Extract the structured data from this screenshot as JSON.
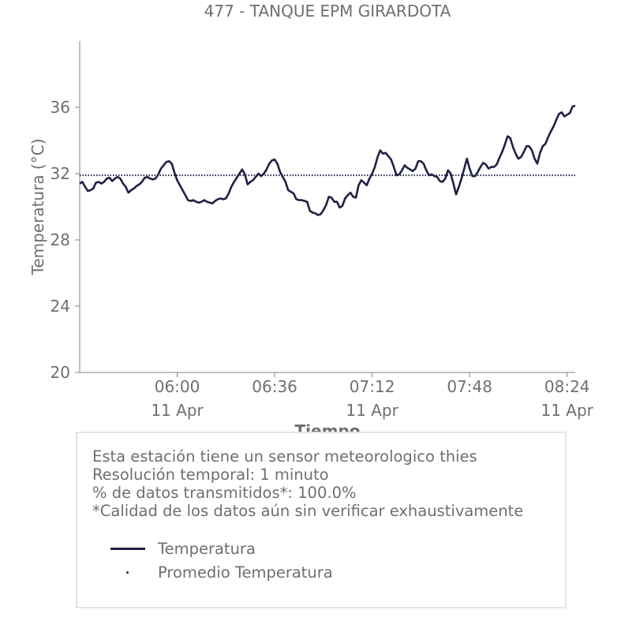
{
  "chart_data": {
    "type": "line",
    "title": "477 - TANQUE EPM GIRARDOTA",
    "xlabel": "Tiempo",
    "ylabel": "Temperatura (°C)",
    "ylim": [
      20,
      40
    ],
    "yticks": [
      20,
      24,
      28,
      32,
      36
    ],
    "xlim": [
      "05:24",
      "08:27"
    ],
    "xticks": [
      {
        "time": "06:00",
        "line1": "06:00",
        "line2": "11 Apr"
      },
      {
        "time": "06:36",
        "line1": "06:36",
        "line2": ""
      },
      {
        "time": "07:12",
        "line1": "07:12",
        "line2": "11 Apr"
      },
      {
        "time": "07:48",
        "line1": "07:48",
        "line2": ""
      },
      {
        "time": "08:24",
        "line1": "08:24",
        "line2": "11 Apr"
      }
    ],
    "grid": false,
    "series": [
      {
        "name": "Temperatura",
        "color": "#1f2144",
        "style": "solid",
        "points": [
          [
            "05:24",
            31.4
          ],
          [
            "05:25",
            31.5
          ],
          [
            "05:26",
            31.2
          ],
          [
            "05:27",
            30.95
          ],
          [
            "05:28",
            31.0
          ],
          [
            "05:29",
            31.1
          ],
          [
            "05:30",
            31.45
          ],
          [
            "05:31",
            31.5
          ],
          [
            "05:32",
            31.4
          ],
          [
            "05:33",
            31.5
          ],
          [
            "05:34",
            31.7
          ],
          [
            "05:35",
            31.75
          ],
          [
            "05:36",
            31.55
          ],
          [
            "05:37",
            31.7
          ],
          [
            "05:38",
            31.8
          ],
          [
            "05:39",
            31.7
          ],
          [
            "05:40",
            31.4
          ],
          [
            "05:41",
            31.2
          ],
          [
            "05:42",
            30.85
          ],
          [
            "05:43",
            31.0
          ],
          [
            "05:44",
            31.1
          ],
          [
            "05:45",
            31.25
          ],
          [
            "05:46",
            31.35
          ],
          [
            "05:47",
            31.5
          ],
          [
            "05:48",
            31.75
          ],
          [
            "05:49",
            31.8
          ],
          [
            "05:50",
            31.7
          ],
          [
            "05:51",
            31.65
          ],
          [
            "05:52",
            31.7
          ],
          [
            "05:53",
            31.95
          ],
          [
            "05:54",
            32.3
          ],
          [
            "05:55",
            32.5
          ],
          [
            "05:56",
            32.7
          ],
          [
            "05:57",
            32.75
          ],
          [
            "05:58",
            32.6
          ],
          [
            "05:59",
            32.05
          ],
          [
            "06:00",
            31.6
          ],
          [
            "06:01",
            31.3
          ],
          [
            "06:02",
            31.0
          ],
          [
            "06:03",
            30.7
          ],
          [
            "06:04",
            30.4
          ],
          [
            "06:05",
            30.35
          ],
          [
            "06:06",
            30.4
          ],
          [
            "06:07",
            30.3
          ],
          [
            "06:08",
            30.25
          ],
          [
            "06:09",
            30.3
          ],
          [
            "06:10",
            30.4
          ],
          [
            "06:11",
            30.3
          ],
          [
            "06:12",
            30.25
          ],
          [
            "06:13",
            30.2
          ],
          [
            "06:14",
            30.35
          ],
          [
            "06:15",
            30.45
          ],
          [
            "06:16",
            30.5
          ],
          [
            "06:17",
            30.45
          ],
          [
            "06:18",
            30.5
          ],
          [
            "06:19",
            30.8
          ],
          [
            "06:20",
            31.2
          ],
          [
            "06:21",
            31.5
          ],
          [
            "06:22",
            31.75
          ],
          [
            "06:23",
            32.0
          ],
          [
            "06:24",
            32.25
          ],
          [
            "06:25",
            31.95
          ],
          [
            "06:26",
            31.35
          ],
          [
            "06:27",
            31.5
          ],
          [
            "06:28",
            31.6
          ],
          [
            "06:29",
            31.8
          ],
          [
            "06:30",
            32.0
          ],
          [
            "06:31",
            31.85
          ],
          [
            "06:32",
            32.0
          ],
          [
            "06:33",
            32.25
          ],
          [
            "06:34",
            32.6
          ],
          [
            "06:35",
            32.8
          ],
          [
            "06:36",
            32.85
          ],
          [
            "06:37",
            32.6
          ],
          [
            "06:38",
            32.1
          ],
          [
            "06:39",
            31.8
          ],
          [
            "06:40",
            31.5
          ],
          [
            "06:41",
            31.0
          ],
          [
            "06:42",
            30.9
          ],
          [
            "06:43",
            30.8
          ],
          [
            "06:44",
            30.45
          ],
          [
            "06:45",
            30.4
          ],
          [
            "06:46",
            30.4
          ],
          [
            "06:47",
            30.35
          ],
          [
            "06:48",
            30.3
          ],
          [
            "06:49",
            29.75
          ],
          [
            "06:50",
            29.65
          ],
          [
            "06:51",
            29.6
          ],
          [
            "06:52",
            29.5
          ],
          [
            "06:53",
            29.55
          ],
          [
            "06:54",
            29.8
          ],
          [
            "06:55",
            30.1
          ],
          [
            "06:56",
            30.6
          ],
          [
            "06:57",
            30.55
          ],
          [
            "06:58",
            30.3
          ],
          [
            "06:59",
            30.3
          ],
          [
            "07:00",
            29.95
          ],
          [
            "07:01",
            30.05
          ],
          [
            "07:02",
            30.5
          ],
          [
            "07:03",
            30.7
          ],
          [
            "07:04",
            30.85
          ],
          [
            "07:05",
            30.6
          ],
          [
            "07:06",
            30.55
          ],
          [
            "07:07",
            31.3
          ],
          [
            "07:08",
            31.6
          ],
          [
            "07:09",
            31.45
          ],
          [
            "07:10",
            31.3
          ],
          [
            "07:11",
            31.7
          ],
          [
            "07:12",
            32.0
          ],
          [
            "07:13",
            32.4
          ],
          [
            "07:14",
            33.0
          ],
          [
            "07:15",
            33.4
          ],
          [
            "07:16",
            33.2
          ],
          [
            "07:17",
            33.25
          ],
          [
            "07:18",
            33.05
          ],
          [
            "07:19",
            32.85
          ],
          [
            "07:20",
            32.4
          ],
          [
            "07:21",
            31.9
          ],
          [
            "07:22",
            31.95
          ],
          [
            "07:23",
            32.2
          ],
          [
            "07:24",
            32.5
          ],
          [
            "07:25",
            32.35
          ],
          [
            "07:26",
            32.25
          ],
          [
            "07:27",
            32.15
          ],
          [
            "07:28",
            32.3
          ],
          [
            "07:29",
            32.75
          ],
          [
            "07:30",
            32.75
          ],
          [
            "07:31",
            32.6
          ],
          [
            "07:32",
            32.2
          ],
          [
            "07:33",
            31.9
          ],
          [
            "07:34",
            31.95
          ],
          [
            "07:35",
            31.85
          ],
          [
            "07:36",
            31.8
          ],
          [
            "07:37",
            31.55
          ],
          [
            "07:38",
            31.5
          ],
          [
            "07:39",
            31.7
          ],
          [
            "07:40",
            32.2
          ],
          [
            "07:41",
            32.0
          ],
          [
            "07:42",
            31.4
          ],
          [
            "07:43",
            30.75
          ],
          [
            "07:44",
            31.2
          ],
          [
            "07:45",
            31.7
          ],
          [
            "07:46",
            32.3
          ],
          [
            "07:47",
            32.9
          ],
          [
            "07:48",
            32.3
          ],
          [
            "07:49",
            31.85
          ],
          [
            "07:50",
            31.85
          ],
          [
            "07:51",
            32.1
          ],
          [
            "07:52",
            32.4
          ],
          [
            "07:53",
            32.65
          ],
          [
            "07:54",
            32.55
          ],
          [
            "07:55",
            32.3
          ],
          [
            "07:56",
            32.4
          ],
          [
            "07:57",
            32.4
          ],
          [
            "07:58",
            32.55
          ],
          [
            "07:59",
            32.95
          ],
          [
            "08:00",
            33.3
          ],
          [
            "08:01",
            33.75
          ],
          [
            "08:02",
            34.25
          ],
          [
            "08:03",
            34.15
          ],
          [
            "08:04",
            33.6
          ],
          [
            "08:05",
            33.2
          ],
          [
            "08:06",
            32.9
          ],
          [
            "08:07",
            33.0
          ],
          [
            "08:08",
            33.3
          ],
          [
            "08:09",
            33.65
          ],
          [
            "08:10",
            33.65
          ],
          [
            "08:11",
            33.4
          ],
          [
            "08:12",
            32.9
          ],
          [
            "08:13",
            32.6
          ],
          [
            "08:14",
            33.25
          ],
          [
            "08:15",
            33.65
          ],
          [
            "08:16",
            33.8
          ],
          [
            "08:17",
            34.2
          ],
          [
            "08:18",
            34.55
          ],
          [
            "08:19",
            34.85
          ],
          [
            "08:20",
            35.25
          ],
          [
            "08:21",
            35.6
          ],
          [
            "08:22",
            35.7
          ],
          [
            "08:23",
            35.45
          ],
          [
            "08:24",
            35.55
          ],
          [
            "08:25",
            35.65
          ],
          [
            "08:26",
            36.05
          ],
          [
            "08:27",
            36.1
          ]
        ]
      },
      {
        "name": "Promedio Temperatura",
        "color": "#1f2144",
        "style": "dotted",
        "value": 31.9
      }
    ]
  },
  "info": {
    "line1": "Esta estación tiene un sensor meteorologico thies",
    "line2": "Resolución temporal: 1 minuto",
    "line3": "% de datos transmitidos*: 100.0%",
    "line4": "*Calidad de los datos aún sin verificar exhaustivamente"
  },
  "legend": {
    "temperatura": "Temperatura",
    "promedio": "Promedio Temperatura"
  }
}
